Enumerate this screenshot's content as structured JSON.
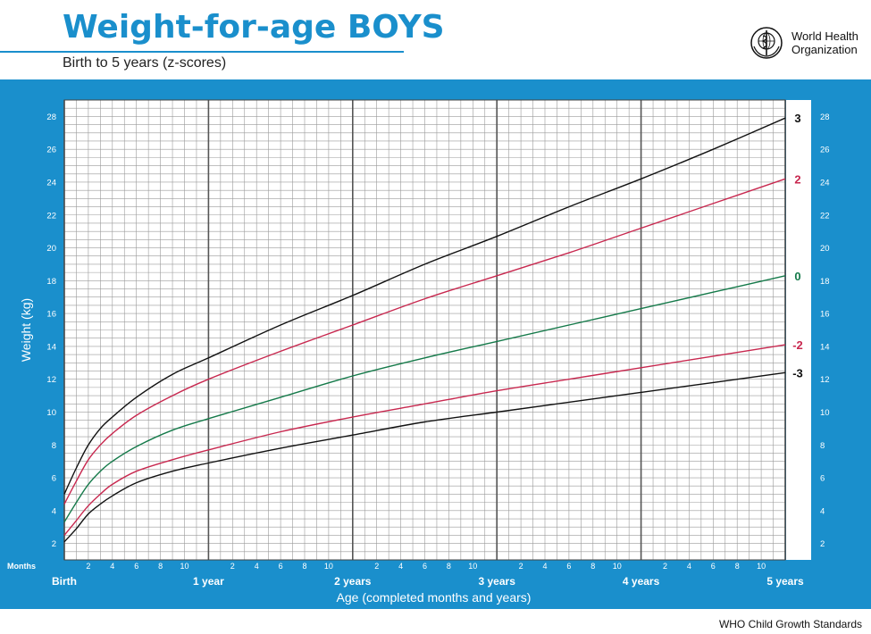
{
  "header": {
    "title": "Weight-for-age BOYS",
    "subtitle": "Birth to 5 years (z-scores)",
    "org_line1": "World Health",
    "org_line2": "Organization"
  },
  "footer": {
    "text": "WHO Child Growth Standards"
  },
  "colors": {
    "background": "#1a8fcc",
    "black_curve": "#111111",
    "red_curve": "#c8284f",
    "green_curve": "#157a4a"
  },
  "chart_data": {
    "type": "line",
    "xlabel": "Age (completed months and years)",
    "ylabel": "Weight (kg)",
    "x_unit": "months",
    "xlim": [
      0,
      60
    ],
    "ylim": [
      1,
      29
    ],
    "grid": true,
    "y_ticks": [
      2,
      4,
      6,
      8,
      10,
      12,
      14,
      16,
      18,
      20,
      22,
      24,
      26,
      28
    ],
    "months_label": "Months",
    "month_ticks": [
      2,
      4,
      6,
      8,
      10
    ],
    "year_labels": [
      "Birth",
      "1 year",
      "2 years",
      "3 years",
      "4 years",
      "5 years"
    ],
    "x": [
      0,
      1,
      2,
      3,
      4,
      6,
      9,
      12,
      18,
      24,
      30,
      36,
      42,
      48,
      54,
      60
    ],
    "series": [
      {
        "name": "3",
        "color": "#111111",
        "values": [
          5.0,
          6.6,
          8.0,
          9.0,
          9.7,
          10.9,
          12.3,
          13.3,
          15.3,
          17.1,
          19.0,
          20.7,
          22.5,
          24.2,
          26.0,
          27.9
        ]
      },
      {
        "name": "2",
        "color": "#c8284f",
        "values": [
          4.4,
          5.8,
          7.1,
          8.0,
          8.7,
          9.8,
          11.0,
          12.0,
          13.7,
          15.3,
          16.9,
          18.3,
          19.7,
          21.2,
          22.7,
          24.2
        ]
      },
      {
        "name": "0",
        "color": "#157a4a",
        "values": [
          3.3,
          4.5,
          5.6,
          6.4,
          7.0,
          7.9,
          8.9,
          9.6,
          10.9,
          12.2,
          13.3,
          14.3,
          15.3,
          16.3,
          17.3,
          18.3
        ]
      },
      {
        "name": "-2",
        "color": "#c8284f",
        "values": [
          2.5,
          3.4,
          4.3,
          5.0,
          5.6,
          6.4,
          7.1,
          7.7,
          8.8,
          9.7,
          10.5,
          11.3,
          12.0,
          12.7,
          13.4,
          14.1
        ]
      },
      {
        "name": "-3",
        "color": "#111111",
        "values": [
          2.1,
          2.9,
          3.8,
          4.4,
          4.9,
          5.7,
          6.4,
          6.9,
          7.8,
          8.6,
          9.4,
          10.0,
          10.6,
          11.2,
          11.8,
          12.4
        ]
      }
    ]
  }
}
